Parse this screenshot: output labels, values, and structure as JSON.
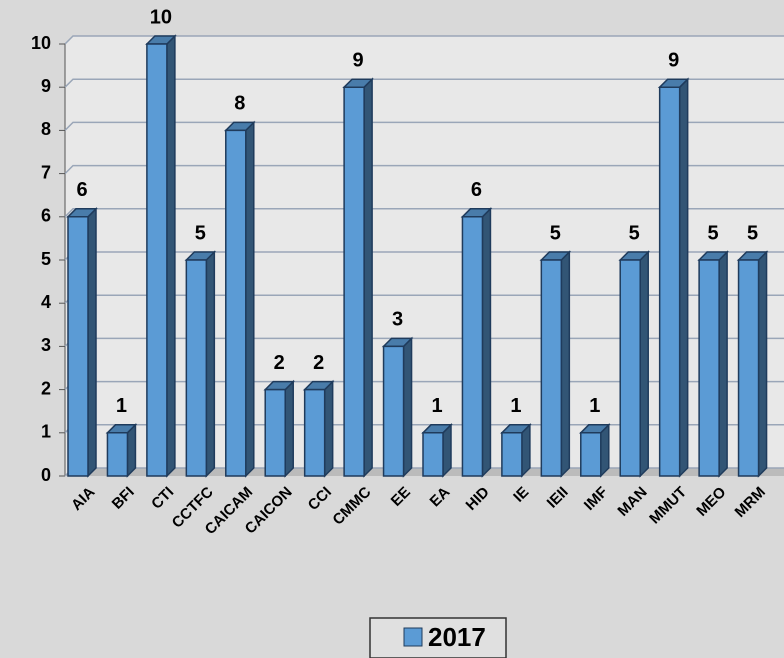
{
  "chart_data": {
    "type": "bar",
    "categories": [
      "AIA",
      "BFI",
      "CTI",
      "CCTFC",
      "CAICAM",
      "CAICON",
      "CCI",
      "CMMC",
      "EE",
      "EA",
      "HID",
      "IE",
      "IEII",
      "IMF",
      "MAN",
      "MMUT",
      "MEO",
      "MRM"
    ],
    "series": [
      {
        "name": "2017",
        "color": "#5b9bd5",
        "values": [
          6,
          1,
          10,
          5,
          8,
          2,
          2,
          9,
          3,
          1,
          6,
          1,
          5,
          1,
          5,
          9,
          5,
          5
        ]
      }
    ],
    "ylim": [
      0,
      10
    ],
    "yticks": [
      0,
      1,
      2,
      3,
      4,
      5,
      6,
      7,
      8,
      9,
      10
    ],
    "grid": true,
    "legend": "bottom"
  }
}
